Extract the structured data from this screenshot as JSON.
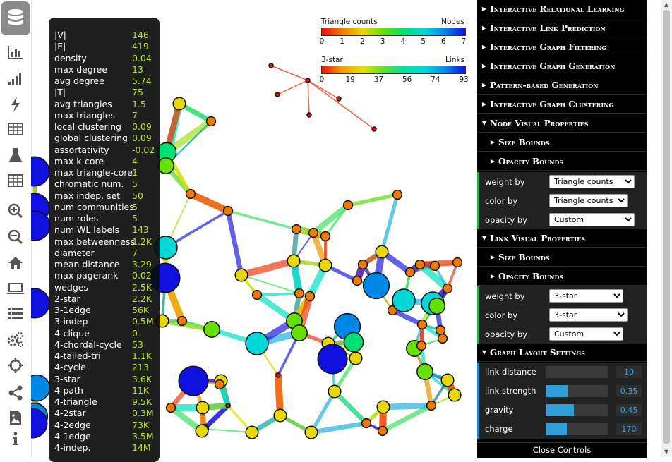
{
  "toolbar": {
    "icons": [
      "database-icon",
      "bar-chart-icon",
      "signal-bars-icon",
      "lightning-icon",
      "table-icon",
      "flask-icon",
      "grid-table-icon",
      "zoom-in-icon",
      "zoom-out-icon",
      "home-icon",
      "laptop-icon",
      "list-icon",
      "cogs-icon",
      "crosshair-icon",
      "share-icon",
      "image-icon",
      "info-icon"
    ]
  },
  "legend_nodes": {
    "left_title": "Triangle counts",
    "right_title": "Nodes",
    "ticks": [
      "0",
      "1",
      "2",
      "3",
      "4",
      "5",
      "6",
      "7"
    ]
  },
  "legend_links": {
    "left_title": "3-star",
    "right_title": "Links",
    "ticks": [
      "0",
      "19",
      "37",
      "56",
      "74",
      "93"
    ]
  },
  "stats": [
    {
      "k": "|V|",
      "v": "146"
    },
    {
      "k": "|E|",
      "v": "419"
    },
    {
      "k": "density",
      "v": "0.04"
    },
    {
      "k": "max degree",
      "v": "13"
    },
    {
      "k": "avg degree",
      "v": "5.74"
    },
    {
      "k": "|T|",
      "v": "75"
    },
    {
      "k": "avg triangles",
      "v": "1.5"
    },
    {
      "k": "max triangles",
      "v": "7"
    },
    {
      "k": "local clustering",
      "v": "0.09"
    },
    {
      "k": "global clustering",
      "v": "0.09"
    },
    {
      "k": "assortativity",
      "v": "-0.02"
    },
    {
      "k": "max k-core",
      "v": "4"
    },
    {
      "k": "max triangle-core",
      "v": "1"
    },
    {
      "k": "chromatic num.",
      "v": "5"
    },
    {
      "k": "max indep. set",
      "v": "50"
    },
    {
      "k": "num communities",
      "v": "5"
    },
    {
      "k": "num roles",
      "v": "5"
    },
    {
      "k": "num WL labels",
      "v": "143"
    },
    {
      "k": "max betweenness",
      "v": "1.2K"
    },
    {
      "k": "diameter",
      "v": "7"
    },
    {
      "k": "mean distance",
      "v": "3.29"
    },
    {
      "k": "max pagerank",
      "v": "0.02"
    },
    {
      "k": "wedges",
      "v": "2.5K"
    },
    {
      "k": "2-star",
      "v": "2.2K"
    },
    {
      "k": "3-1edge",
      "v": "56K"
    },
    {
      "k": "3-indep",
      "v": "0.5M"
    },
    {
      "k": "4-clique",
      "v": "0"
    },
    {
      "k": "4-chordal-cycle",
      "v": "53"
    },
    {
      "k": "4-tailed-tri",
      "v": "1.1K"
    },
    {
      "k": "4-cycle",
      "v": "213"
    },
    {
      "k": "3-star",
      "v": "3.6K"
    },
    {
      "k": "4-path",
      "v": "11K"
    },
    {
      "k": "4-triangle",
      "v": "9.5K"
    },
    {
      "k": "4-2star",
      "v": "0.3M"
    },
    {
      "k": "4-2edge",
      "v": "73K"
    },
    {
      "k": "4-1edge",
      "v": "3.5M"
    },
    {
      "k": "4-indep.",
      "v": "14M"
    }
  ],
  "controls": {
    "sections": [
      "Interactive Relational Learning",
      "Interactive Link Prediction",
      "Interactive Graph Filtering",
      "Interactive Graph Generation",
      "Pattern-based Generation",
      "Interactive Graph Clustering"
    ],
    "node_visual": {
      "title": "Node Visual Properties",
      "size_bounds": "Size Bounds",
      "opacity_bounds": "Opacity Bounds",
      "weight_by_label": "weight by",
      "weight_by_value": "Triangle counts",
      "color_by_label": "color by",
      "color_by_value": "Triangle counts",
      "opacity_by_label": "opacity by",
      "opacity_by_value": "Custom"
    },
    "link_visual": {
      "title": "Link Visual Properties",
      "size_bounds": "Size Bounds",
      "opacity_bounds": "Opacity Bounds",
      "weight_by_label": "weight by",
      "weight_by_value": "3-star",
      "color_by_label": "color by",
      "color_by_value": "3-star",
      "opacity_by_label": "opacity by",
      "opacity_by_value": "Custom"
    },
    "layout": {
      "title": "Graph Layout Settings",
      "sliders": [
        {
          "label": "link distance",
          "value": "10",
          "level": 0
        },
        {
          "label": "link strength",
          "value": "0.35",
          "level": 0.35
        },
        {
          "label": "gravity",
          "value": "0.45",
          "level": 0.45
        },
        {
          "label": "charge",
          "value": "170",
          "level": 0.34
        }
      ]
    },
    "close_label": "Close Controls"
  }
}
